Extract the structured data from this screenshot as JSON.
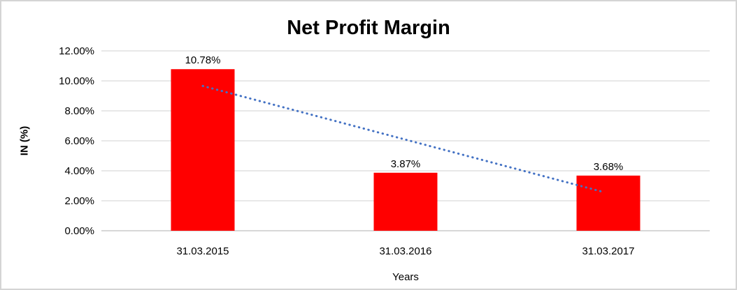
{
  "chart_data": {
    "type": "bar",
    "title": "Net Profit Margin",
    "xlabel": "Years",
    "ylabel": "IN (%)",
    "categories": [
      "31.03.2015",
      "31.03.2016",
      "31.03.2017"
    ],
    "series": [
      {
        "name": "Net Profit Margin",
        "values": [
          10.78,
          3.87,
          3.68
        ],
        "labels": [
          "10.78%",
          "3.87%",
          "3.68%"
        ]
      }
    ],
    "ylim": [
      0,
      12
    ],
    "y_ticks": [
      {
        "value": 0,
        "label": "0.00%"
      },
      {
        "value": 2,
        "label": "2.00%"
      },
      {
        "value": 4,
        "label": "4.00%"
      },
      {
        "value": 6,
        "label": "6.00%"
      },
      {
        "value": 8,
        "label": "8.00%"
      },
      {
        "value": 10,
        "label": "10.00%"
      },
      {
        "value": 12,
        "label": "12.00%"
      }
    ],
    "grid": true,
    "legend": "none",
    "colors": {
      "bar": "#FF0000",
      "trendline": "#4472C4",
      "gridline": "#D9D9D9",
      "axis_line": "#BFBFBF",
      "text": "#000000"
    },
    "trendline": {
      "type": "linear",
      "style": "dotted",
      "color": "#4472C4",
      "start": {
        "category_index": 0,
        "value": 9.66
      },
      "end": {
        "category_index": 2,
        "value": 2.56
      }
    }
  }
}
